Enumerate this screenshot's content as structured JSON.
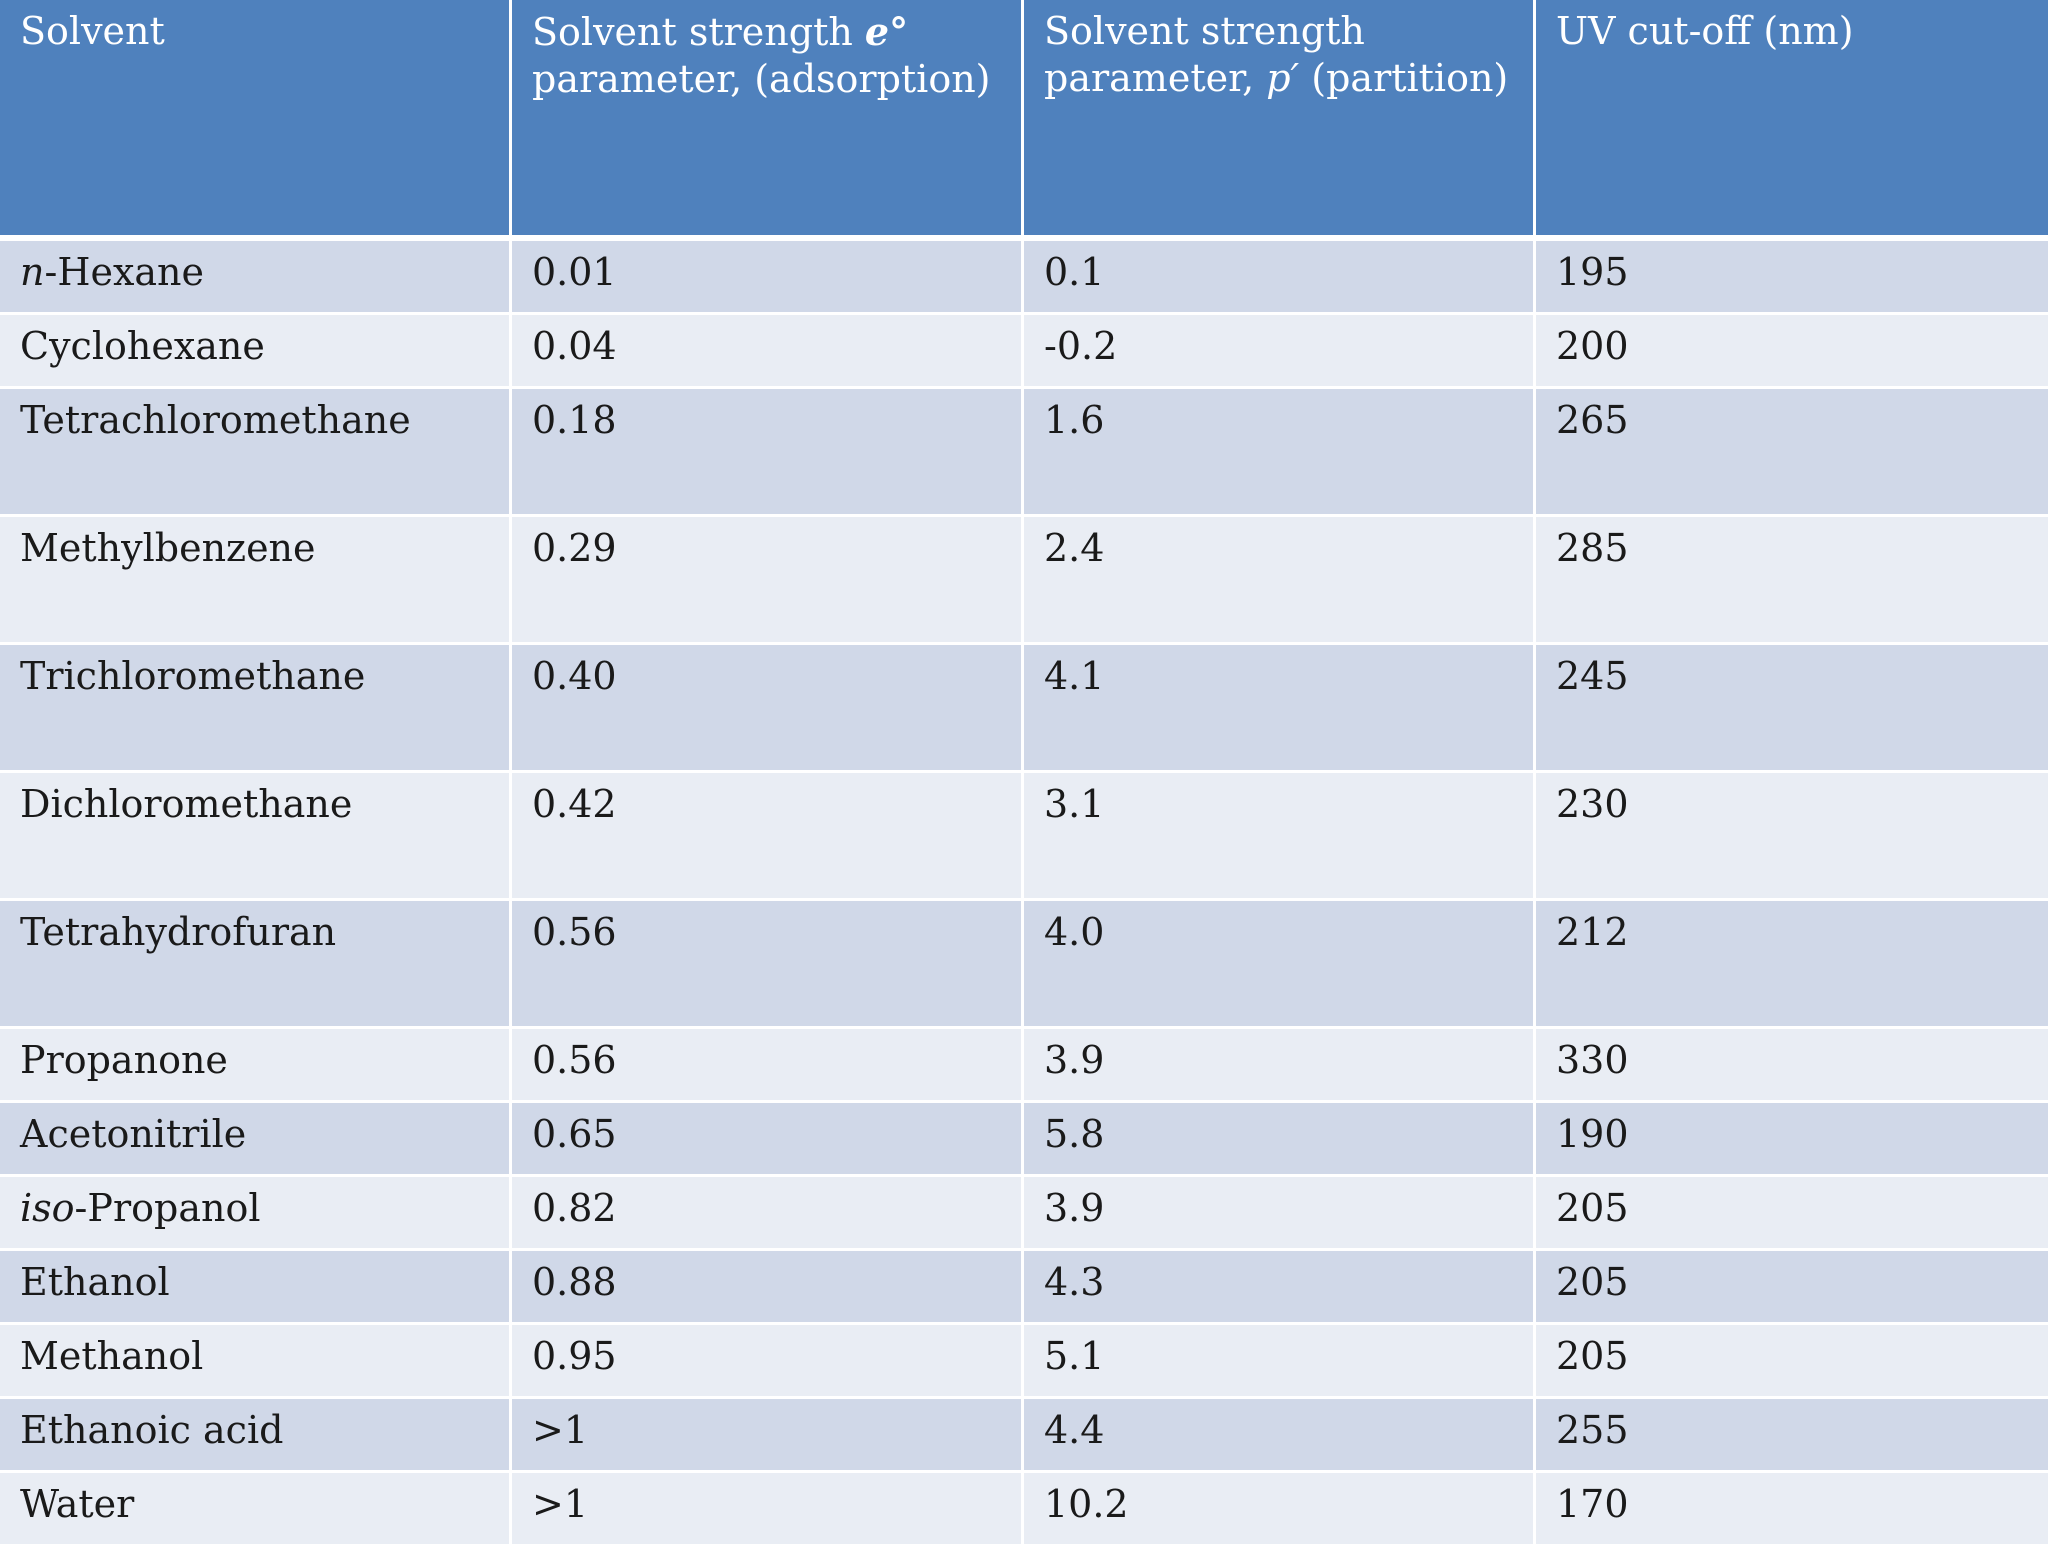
{
  "table": {
    "headers": {
      "solvent": "Solvent",
      "adsorption_prefix": "Solvent strength ",
      "adsorption_symbol": "e°",
      "adsorption_suffix": " parameter, (adsorption)",
      "partition_prefix": "Solvent strength parameter, ",
      "partition_symbol": "p′",
      "partition_suffix": " (partition)",
      "uv_cutoff": "UV cut-off (nm)"
    },
    "rows": [
      {
        "prefix": "n",
        "name": "-Hexane",
        "e": "0.01",
        "p": "0.1",
        "uv": "195"
      },
      {
        "prefix": "",
        "name": "Cyclohexane",
        "e": "0.04",
        "p": "-0.2",
        "uv": "200"
      },
      {
        "prefix": "",
        "name": "Tetrachloromethane",
        "e": "0.18",
        "p": "1.6",
        "uv": "265"
      },
      {
        "prefix": "",
        "name": "Methylbenzene",
        "e": "0.29",
        "p": "2.4",
        "uv": "285"
      },
      {
        "prefix": "",
        "name": "Trichloromethane",
        "e": "0.40",
        "p": "4.1",
        "uv": "245"
      },
      {
        "prefix": "",
        "name": "Dichloromethane",
        "e": "0.42",
        "p": "3.1",
        "uv": "230"
      },
      {
        "prefix": "",
        "name": "Tetrahydrofuran",
        "e": "0.56",
        "p": "4.0",
        "uv": "212"
      },
      {
        "prefix": "",
        "name": "Propanone",
        "e": "0.56",
        "p": "3.9",
        "uv": "330"
      },
      {
        "prefix": "",
        "name": "Acetonitrile",
        "e": "0.65",
        "p": "5.8",
        "uv": "190"
      },
      {
        "prefix": "iso",
        "name": "-Propanol",
        "e": "0.82",
        "p": "3.9",
        "uv": "205"
      },
      {
        "prefix": "",
        "name": "Ethanol",
        "e": "0.88",
        "p": "4.3",
        "uv": "205"
      },
      {
        "prefix": "",
        "name": "Methanol",
        "e": "0.95",
        "p": "5.1",
        "uv": "205"
      },
      {
        "prefix": "",
        "name": "Ethanoic acid",
        "e": ">1",
        "p": "4.4",
        "uv": "255"
      },
      {
        "prefix": "",
        "name": "Water",
        "e": ">1",
        "p": "10.2",
        "uv": "170"
      }
    ]
  }
}
